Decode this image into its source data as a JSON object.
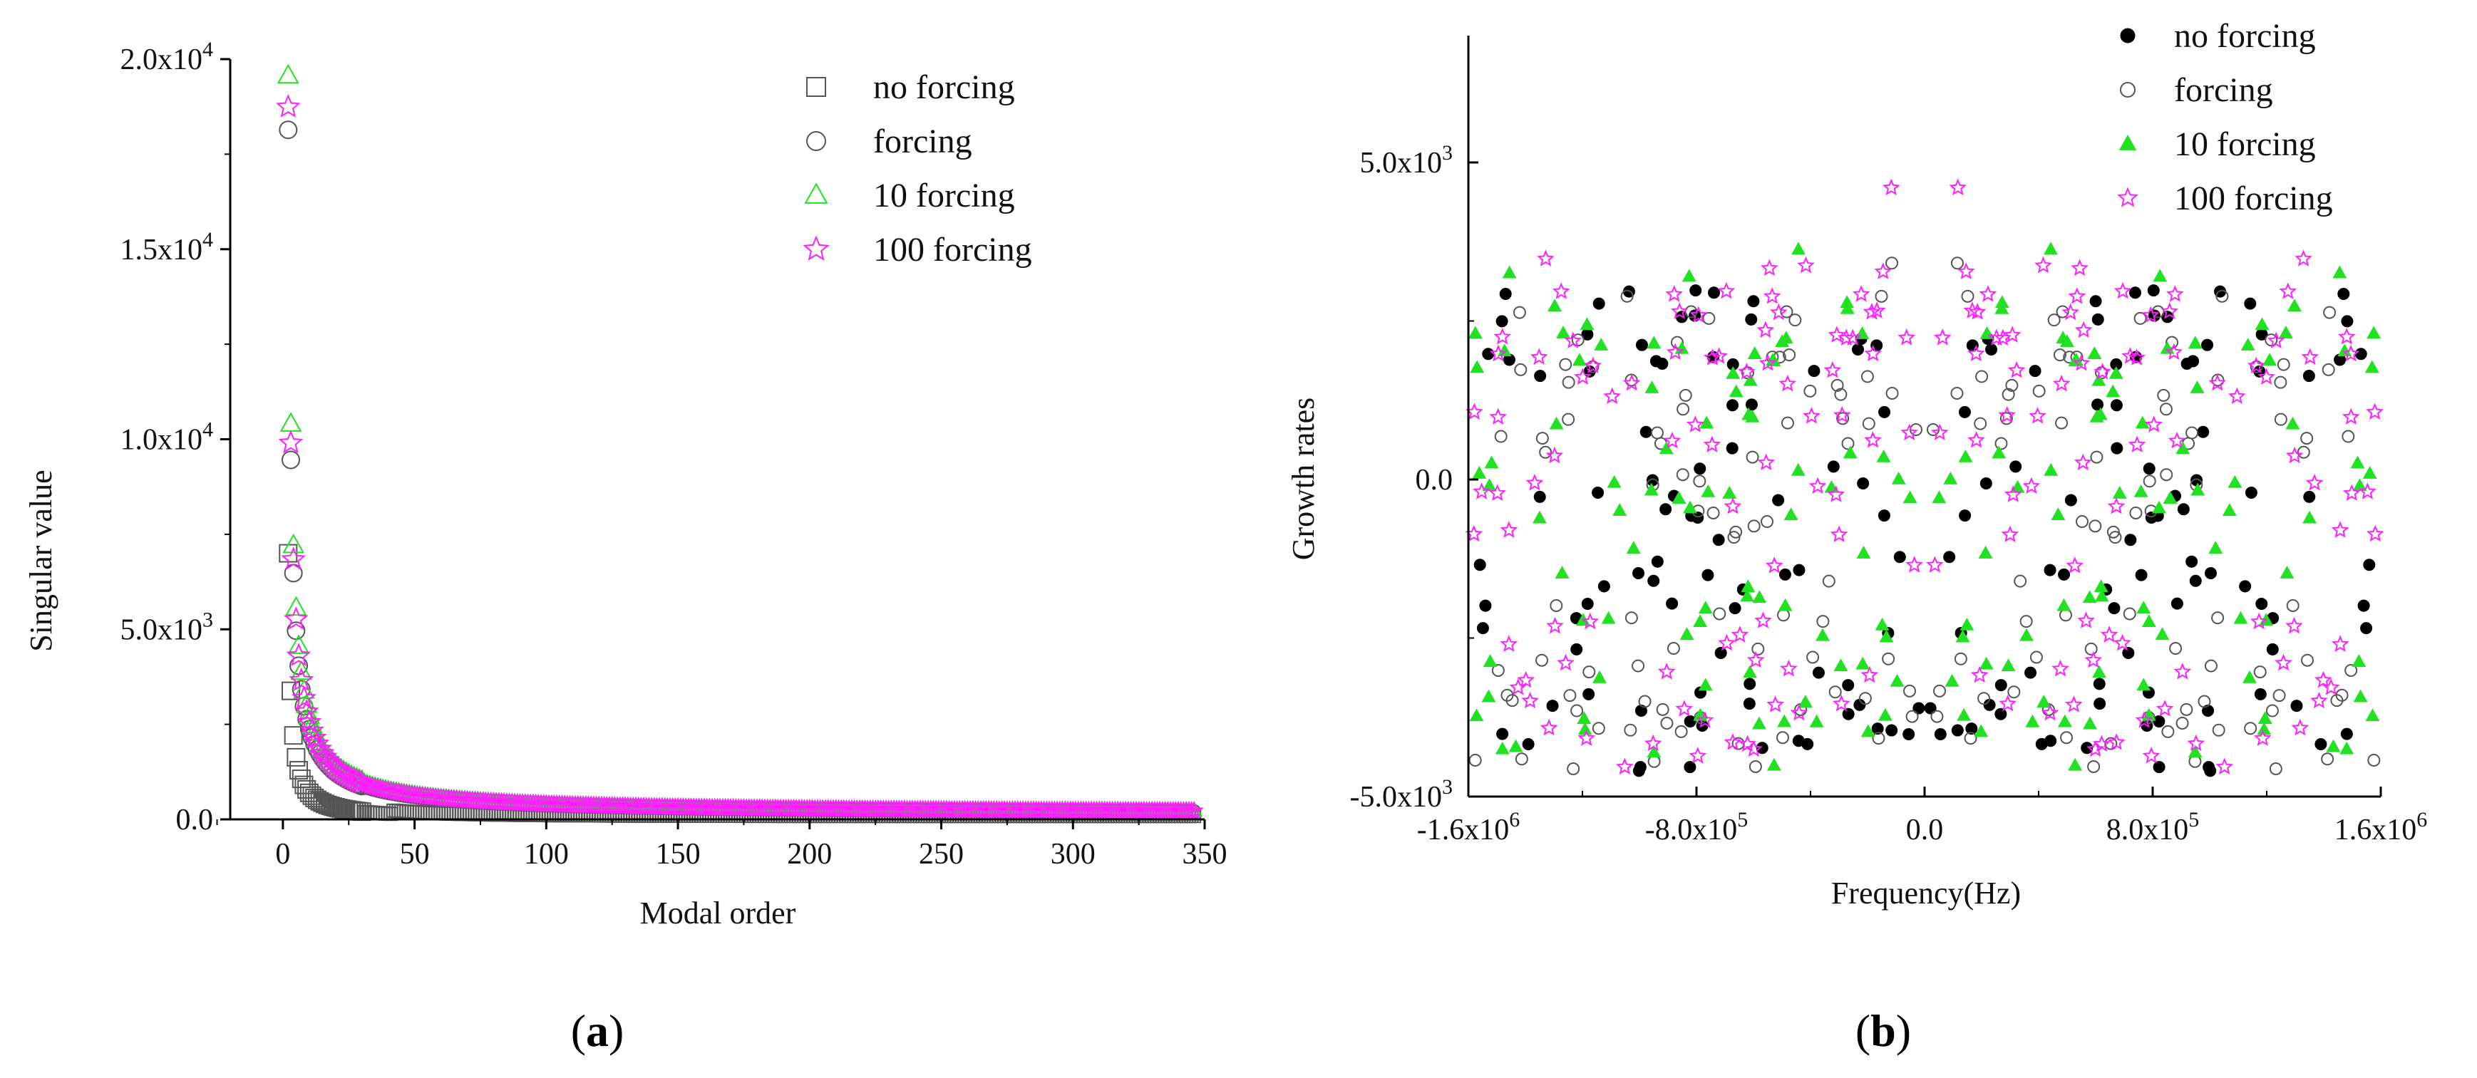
{
  "chart_data": [
    {
      "panel_label": "a",
      "type": "scatter",
      "xlabel": "Modal order",
      "ylabel": "Singular value",
      "xlim": [
        -20,
        350
      ],
      "ylim": [
        0,
        20000
      ],
      "xticks": [
        0,
        50,
        100,
        150,
        200,
        250,
        300,
        350
      ],
      "xtick_labels": [
        "0",
        "50",
        "100",
        "150",
        "200",
        "250",
        "300",
        "350"
      ],
      "yticks": [
        0,
        5000,
        10000,
        15000,
        20000
      ],
      "ytick_labels": [
        {
          "base": "0.0",
          "exp": ""
        },
        {
          "base": "5.0x10",
          "exp": "3"
        },
        {
          "base": "1.0x10",
          "exp": "4"
        },
        {
          "base": "1.5x10",
          "exp": "4"
        },
        {
          "base": "2.0x10",
          "exp": "4"
        }
      ],
      "legend_position": "top-right",
      "series": [
        {
          "name": "no forcing",
          "marker": "square",
          "color": "#555555",
          "n": 345,
          "first": 7000,
          "decay_power": 1.05
        },
        {
          "name": "forcing",
          "marker": "circle",
          "color": "#555555",
          "n": 345,
          "first": 18000,
          "decay_power": 0.95
        },
        {
          "name": "10 forcing",
          "marker": "triangle",
          "color": "#22e022",
          "n": 345,
          "first": 18500,
          "decay_power": 0.92
        },
        {
          "name": "100 forcing",
          "marker": "star",
          "color": "#ff20ff",
          "n": 345,
          "first": 18600,
          "decay_power": 0.93
        }
      ]
    },
    {
      "panel_label": "b",
      "type": "scatter",
      "xlabel": "Frequency(Hz)",
      "ylabel": "Growth rates",
      "xlim": [
        -1600000,
        1600000
      ],
      "ylim": [
        -5000,
        7000
      ],
      "xticks": [
        -1600000,
        -800000,
        0,
        800000,
        1600000
      ],
      "xtick_labels": [
        {
          "base": "-1.6x10",
          "exp": "6"
        },
        {
          "base": "-8.0x10",
          "exp": "5"
        },
        {
          "base": "0.0",
          "exp": ""
        },
        {
          "base": "8.0x10",
          "exp": "5"
        },
        {
          "base": "1.6x10",
          "exp": "6"
        }
      ],
      "yticks": [
        -5000,
        0,
        5000
      ],
      "ytick_labels": [
        {
          "base": "-5.0x10",
          "exp": "3"
        },
        {
          "base": "0.0",
          "exp": ""
        },
        {
          "base": "5.0x10",
          "exp": "3"
        }
      ],
      "legend_position": "top-right",
      "series": [
        {
          "name": "no forcing",
          "marker": "filled-circle",
          "color": "#000000",
          "n": 170,
          "seed": 11
        },
        {
          "name": "forcing",
          "marker": "open-circle",
          "color": "#555555",
          "n": 170,
          "seed": 23
        },
        {
          "name": "10 forcing",
          "marker": "filled-triangle",
          "color": "#22e022",
          "n": 170,
          "seed": 37
        },
        {
          "name": "100 forcing",
          "marker": "star",
          "color": "#ff20ff",
          "n": 170,
          "seed": 53
        }
      ]
    }
  ]
}
